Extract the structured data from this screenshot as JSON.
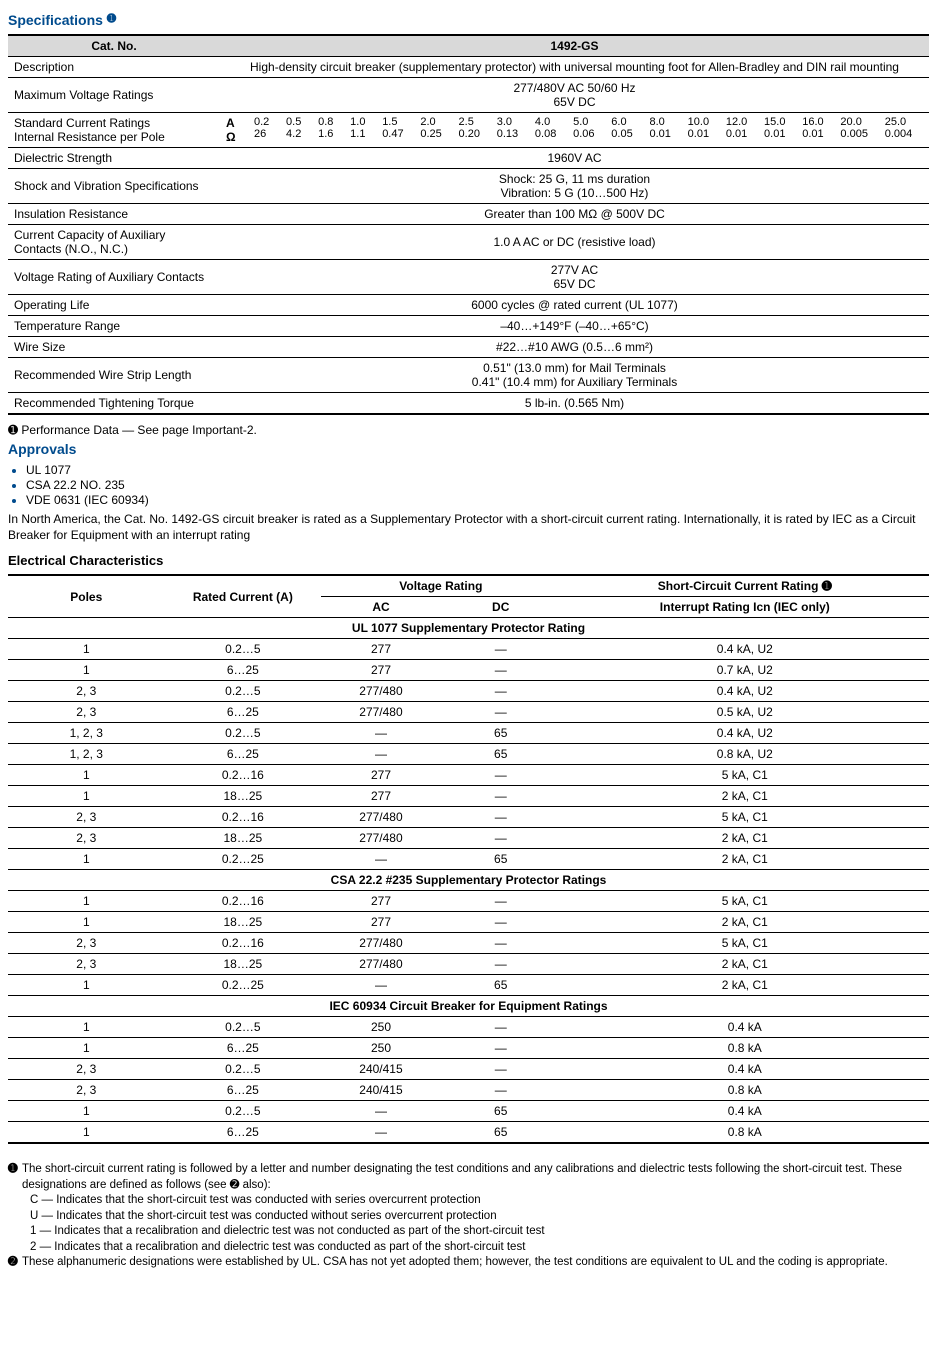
{
  "titles": {
    "specifications": "Specifications",
    "approvals": "Approvals",
    "electrical": "Electrical Characteristics"
  },
  "specTable": {
    "header": {
      "catno": "Cat. No.",
      "model": "1492-GS"
    },
    "rows": {
      "description": {
        "label": "Description",
        "value": "High-density circuit breaker (supplementary protector) with universal mounting foot for Allen-Bradley and DIN rail mounting"
      },
      "maxVoltage": {
        "label": "Maximum Voltage Ratings",
        "line1": "277/480V AC 50/60 Hz",
        "line2": "65V DC"
      },
      "currentRatings": {
        "label1": "Standard Current Ratings",
        "label2": "Internal Resistance per Pole",
        "unit1": "A",
        "unit2": "Ω",
        "amps": [
          "0.2",
          "0.5",
          "0.8",
          "1.0",
          "1.5",
          "2.0",
          "2.5",
          "3.0",
          "4.0",
          "5.0",
          "6.0",
          "8.0",
          "10.0",
          "12.0",
          "15.0",
          "16.0",
          "20.0",
          "25.0"
        ],
        "ohms": [
          "26",
          "4.2",
          "1.6",
          "1.1",
          "0.47",
          "0.25",
          "0.20",
          "0.13",
          "0.08",
          "0.06",
          "0.05",
          "0.01",
          "0.01",
          "0.01",
          "0.01",
          "0.01",
          "0.005",
          "0.004"
        ]
      },
      "dielectric": {
        "label": "Dielectric Strength",
        "value": "1960V AC"
      },
      "shock": {
        "label": "Shock and Vibration Specifications",
        "line1": "Shock: 25 G, 11 ms duration",
        "line2": "Vibration: 5 G (10…500 Hz)"
      },
      "insulation": {
        "label": "Insulation Resistance",
        "value": "Greater than 100 MΩ @ 500V DC"
      },
      "auxCurrent": {
        "label": "Current Capacity of Auxiliary Contacts (N.O., N.C.)",
        "value": "1.0 A AC or DC (resistive load)"
      },
      "auxVoltage": {
        "label": "Voltage Rating of Auxiliary Contacts",
        "line1": "277V AC",
        "line2": "65V DC"
      },
      "opLife": {
        "label": "Operating Life",
        "value": "6000 cycles @ rated current (UL 1077)"
      },
      "temp": {
        "label": "Temperature Range",
        "value": "–40…+149°F (–40…+65°C)"
      },
      "wire": {
        "label": "Wire Size",
        "value": "#22…#10 AWG (0.5…6 mm²)"
      },
      "strip": {
        "label": "Recommended Wire Strip Length",
        "line1": "0.51\" (13.0 mm) for Mail Terminals",
        "line2": "0.41\" (10.4 mm) for Auxiliary Terminals"
      },
      "torque": {
        "label": "Recommended Tightening Torque",
        "value": "5 lb-in. (0.565 Nm)"
      }
    }
  },
  "perfNote": "Performance Data — See page Important-2.",
  "approvalsList": [
    "UL 1077",
    "CSA 22.2 NO. 235",
    "VDE 0631 (IEC 60934)"
  ],
  "approvalsText": "In North America, the Cat. No. 1492-GS circuit breaker is rated as a Supplementary Protector with a short-circuit current rating. Internationally, it is rated by IEC as a Circuit Breaker for Equipment with an interrupt rating",
  "ecTable": {
    "headers": {
      "poles": "Poles",
      "rated": "Rated Current (A)",
      "voltage": "Voltage Rating",
      "ac": "AC",
      "dc": "DC",
      "scr1": "Short-Circuit Current Rating ➊",
      "scr2": "Interrupt Rating Icn (IEC only)"
    },
    "sections": [
      {
        "title": "UL 1077 Supplementary Protector Rating",
        "rows": [
          [
            "1",
            "0.2…5",
            "277",
            "—",
            "0.4 kA, U2"
          ],
          [
            "1",
            "6…25",
            "277",
            "—",
            "0.7 kA, U2"
          ],
          [
            "2, 3",
            "0.2…5",
            "277/480",
            "—",
            "0.4 kA, U2"
          ],
          [
            "2, 3",
            "6…25",
            "277/480",
            "—",
            "0.5 kA, U2"
          ],
          [
            "1, 2, 3",
            "0.2…5",
            "—",
            "65",
            "0.4 kA, U2"
          ],
          [
            "1, 2, 3",
            "6…25",
            "—",
            "65",
            "0.8 kA, U2"
          ],
          [
            "1",
            "0.2…16",
            "277",
            "—",
            "5 kA, C1"
          ],
          [
            "1",
            "18…25",
            "277",
            "—",
            "2 kA, C1"
          ],
          [
            "2, 3",
            "0.2…16",
            "277/480",
            "—",
            "5 kA, C1"
          ],
          [
            "2, 3",
            "18…25",
            "277/480",
            "—",
            "2 kA, C1"
          ],
          [
            "1",
            "0.2…25",
            "—",
            "65",
            "2 kA, C1"
          ]
        ]
      },
      {
        "title": "CSA 22.2 #235 Supplementary Protector Ratings",
        "rows": [
          [
            "1",
            "0.2…16",
            "277",
            "—",
            "5 kA, C1"
          ],
          [
            "1",
            "18…25",
            "277",
            "—",
            "2 kA, C1"
          ],
          [
            "2, 3",
            "0.2…16",
            "277/480",
            "—",
            "5 kA, C1"
          ],
          [
            "2, 3",
            "18…25",
            "277/480",
            "—",
            "2 kA, C1"
          ],
          [
            "1",
            "0.2…25",
            "—",
            "65",
            "2 kA, C1"
          ]
        ]
      },
      {
        "title": "IEC 60934 Circuit Breaker for Equipment Ratings",
        "rows": [
          [
            "1",
            "0.2…5",
            "250",
            "—",
            "0.4 kA"
          ],
          [
            "1",
            "6…25",
            "250",
            "—",
            "0.8 kA"
          ],
          [
            "2, 3",
            "0.2…5",
            "240/415",
            "—",
            "0.4 kA"
          ],
          [
            "2, 3",
            "6…25",
            "240/415",
            "—",
            "0.8 kA"
          ],
          [
            "1",
            "0.2…5",
            "—",
            "65",
            "0.4 kA"
          ],
          [
            "1",
            "6…25",
            "—",
            "65",
            "0.8 kA"
          ]
        ]
      }
    ]
  },
  "footnotes": {
    "f1": "The short-circuit current rating is followed by a letter and number designating the test conditions and any calibrations and dielectric tests following the short-circuit test. These designations are defined as follows (see ➋ also):",
    "f1c": "C — Indicates that the short-circuit test was conducted with series overcurrent protection",
    "f1u": "U — Indicates that the short-circuit test was conducted without series overcurrent protection",
    "f11": "1 — Indicates that a recalibration and dielectric test was not conducted as part of the short-circuit test",
    "f12": "2 — Indicates that a recalibration and dielectric test was conducted as part of the short-circuit test",
    "f2": "These alphanumeric designations were established by UL. CSA has not yet adopted them; however, the test conditions are equivalent to UL and the coding is appropriate."
  }
}
